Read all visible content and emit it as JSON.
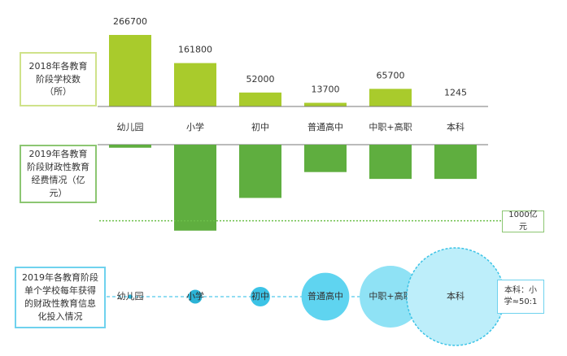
{
  "chart_data": [
    {
      "type": "bar",
      "title": "2018年各教育阶段学校数（所）",
      "categories": [
        "幼儿园",
        "小学",
        "初中",
        "普通高中",
        "中职+高职",
        "本科"
      ],
      "values": [
        266700,
        161800,
        52000,
        13700,
        65700,
        1245
      ],
      "color": "#a9cb2c",
      "ylim": [
        0,
        300000
      ]
    },
    {
      "type": "bar",
      "orientation": "down",
      "title": "2019年各教育阶段财政性教育经费情况（亿元）",
      "values": [
        40,
        1130,
        700,
        360,
        450,
        450
      ],
      "color": "#5fae3f",
      "ylim": [
        0,
        1250
      ],
      "reference_line": {
        "value": 1000,
        "label": "1000亿元"
      }
    },
    {
      "type": "bubble",
      "title": "2019年各教育阶段单个学校每年获得的财政性教育信息化投入情况",
      "categories": [
        "幼儿园",
        "小学",
        "初中",
        "普通高中",
        "中职+高职",
        "本科"
      ],
      "values": [
        0.1,
        1,
        2,
        12,
        20,
        50
      ],
      "colors": [
        "#2bb3d6",
        "#2bb3d6",
        "#3cc3e6",
        "#5fd4f0",
        "#8fe2f5",
        "#bdeefa"
      ],
      "size_lim": [
        0,
        50
      ],
      "annotation": "本科：小学≈50:1"
    }
  ]
}
